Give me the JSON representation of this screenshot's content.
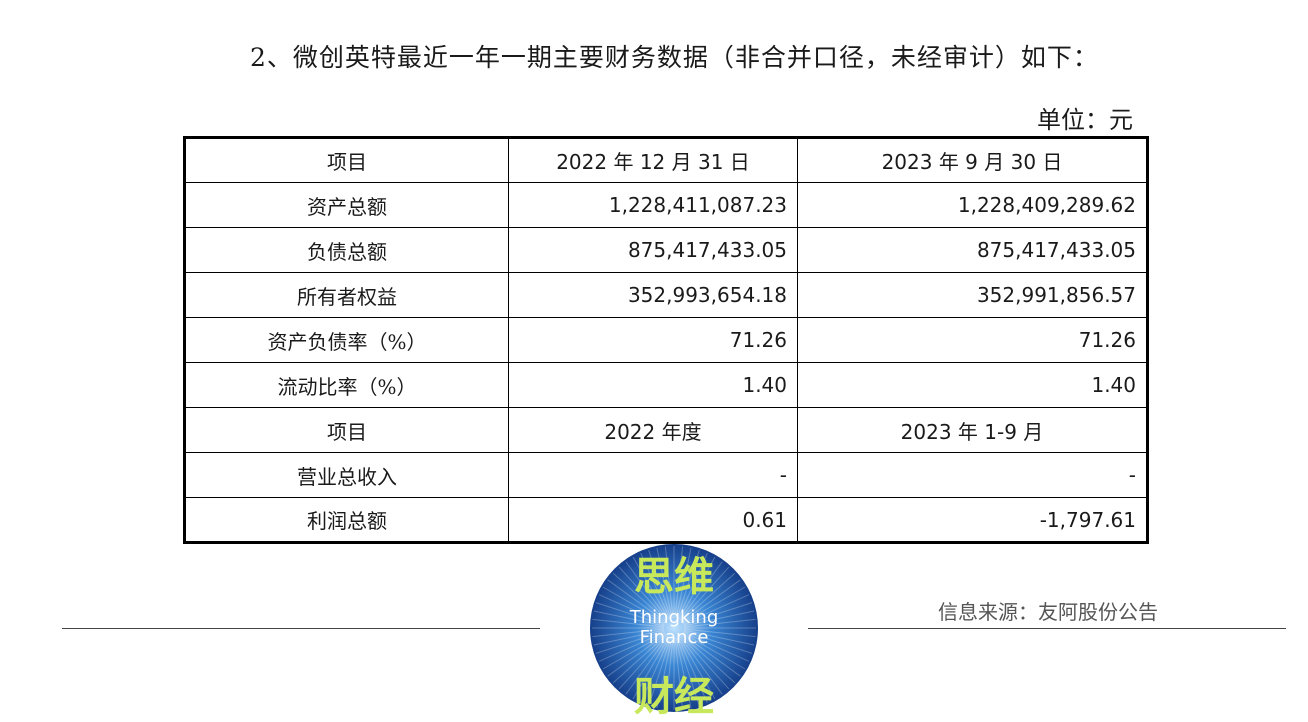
{
  "heading": "2、微创英特最近一年一期主要财务数据（非合并口径，未经审计）如下：",
  "unit": "单位：元",
  "table": {
    "rows": [
      {
        "label": "项目",
        "c1": "2022 年 12 月 31 日",
        "c2": "2023 年 9 月 30 日",
        "kind": "head"
      },
      {
        "label": "资产总额",
        "c1": "1,228,411,087.23",
        "c2": "1,228,409,289.62",
        "kind": "num"
      },
      {
        "label": "负债总额",
        "c1": "875,417,433.05",
        "c2": "875,417,433.05",
        "kind": "num"
      },
      {
        "label": "所有者权益",
        "c1": "352,993,654.18",
        "c2": "352,991,856.57",
        "kind": "num"
      },
      {
        "label": "资产负债率（%）",
        "c1": "71.26",
        "c2": "71.26",
        "kind": "num"
      },
      {
        "label": "流动比率（%）",
        "c1": "1.40",
        "c2": "1.40",
        "kind": "num"
      },
      {
        "label": "项目",
        "c1": "2022 年度",
        "c2": "2023 年 1-9 月",
        "kind": "head"
      },
      {
        "label": "营业总收入",
        "c1": "-",
        "c2": "-",
        "kind": "num"
      },
      {
        "label": "利润总额",
        "c1": "0.61",
        "c2": "-1,797.61",
        "kind": "num"
      }
    ]
  },
  "logo": {
    "top": "思维",
    "en1": "Thingking",
    "en2": "Finance",
    "bottom": "财经",
    "color_outer": "#1d4fa0",
    "color_text": "#c8e85c"
  },
  "source": "信息来源：友阿股份公告"
}
